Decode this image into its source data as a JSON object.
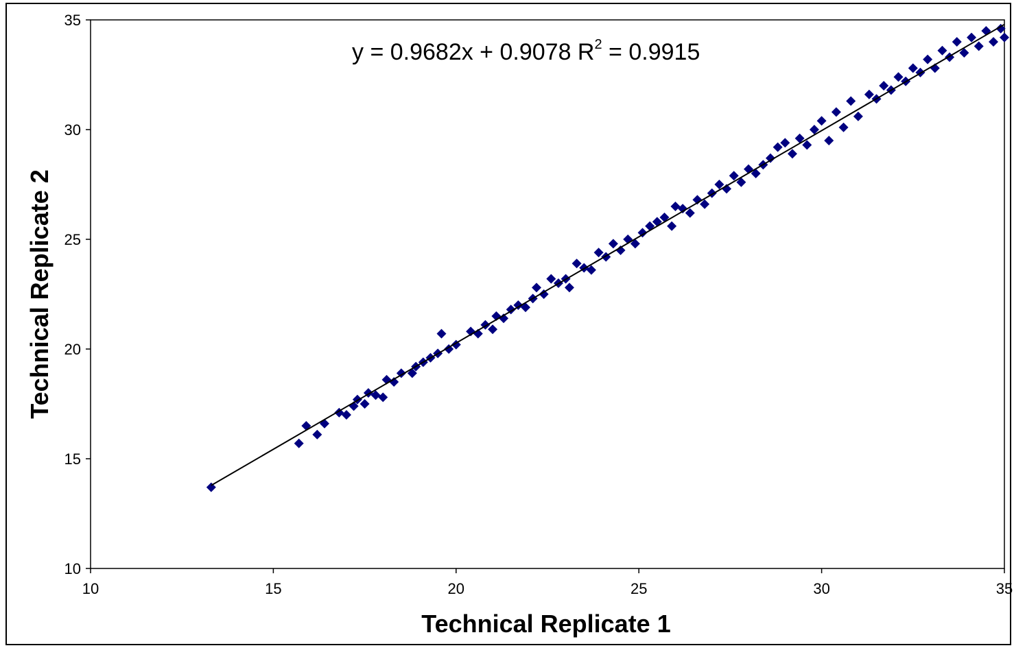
{
  "chart_data": {
    "type": "scatter",
    "xlabel": "Technical Replicate 1",
    "ylabel": "Technical Replicate 2",
    "xlim": [
      10,
      35
    ],
    "ylim": [
      10,
      35
    ],
    "x_ticks": [
      "10",
      "15",
      "20",
      "25",
      "30",
      "35"
    ],
    "y_ticks": [
      "10",
      "15",
      "20",
      "25",
      "30",
      "35"
    ],
    "trendline": {
      "type": "linear",
      "slope": 0.9682,
      "intercept": 0.9078,
      "r_squared": 0.9915,
      "equation_prefix": "y = 0.9682x + 0.9078 R",
      "equation_sup": "2",
      "equation_suffix": " = 0.9915",
      "color": "#000000"
    },
    "marker": {
      "shape": "diamond",
      "color": "#000080"
    },
    "grid": false,
    "legend": "none",
    "points": [
      [
        13.3,
        13.7
      ],
      [
        15.7,
        15.7
      ],
      [
        15.9,
        16.5
      ],
      [
        16.2,
        16.1
      ],
      [
        16.4,
        16.6
      ],
      [
        16.8,
        17.1
      ],
      [
        17.0,
        17.0
      ],
      [
        17.2,
        17.4
      ],
      [
        17.3,
        17.7
      ],
      [
        17.5,
        17.5
      ],
      [
        17.6,
        18.0
      ],
      [
        17.8,
        17.9
      ],
      [
        18.0,
        17.8
      ],
      [
        18.1,
        18.6
      ],
      [
        18.3,
        18.5
      ],
      [
        18.5,
        18.9
      ],
      [
        18.8,
        18.9
      ],
      [
        18.9,
        19.2
      ],
      [
        19.1,
        19.4
      ],
      [
        19.3,
        19.6
      ],
      [
        19.5,
        19.8
      ],
      [
        19.6,
        20.7
      ],
      [
        19.8,
        20.0
      ],
      [
        20.0,
        20.2
      ],
      [
        20.4,
        20.8
      ],
      [
        20.6,
        20.7
      ],
      [
        20.8,
        21.1
      ],
      [
        21.0,
        20.9
      ],
      [
        21.1,
        21.5
      ],
      [
        21.3,
        21.4
      ],
      [
        21.5,
        21.8
      ],
      [
        21.7,
        22.0
      ],
      [
        21.9,
        21.9
      ],
      [
        22.1,
        22.3
      ],
      [
        22.2,
        22.8
      ],
      [
        22.4,
        22.5
      ],
      [
        22.6,
        23.2
      ],
      [
        22.8,
        23.0
      ],
      [
        23.0,
        23.2
      ],
      [
        23.1,
        22.8
      ],
      [
        23.3,
        23.9
      ],
      [
        23.5,
        23.7
      ],
      [
        23.7,
        23.6
      ],
      [
        23.9,
        24.4
      ],
      [
        24.1,
        24.2
      ],
      [
        24.3,
        24.8
      ],
      [
        24.5,
        24.5
      ],
      [
        24.7,
        25.0
      ],
      [
        24.9,
        24.8
      ],
      [
        25.1,
        25.3
      ],
      [
        25.3,
        25.6
      ],
      [
        25.5,
        25.8
      ],
      [
        25.7,
        26.0
      ],
      [
        25.9,
        25.6
      ],
      [
        26.0,
        26.5
      ],
      [
        26.2,
        26.4
      ],
      [
        26.4,
        26.2
      ],
      [
        26.6,
        26.8
      ],
      [
        26.8,
        26.6
      ],
      [
        27.0,
        27.1
      ],
      [
        27.2,
        27.5
      ],
      [
        27.4,
        27.3
      ],
      [
        27.6,
        27.9
      ],
      [
        27.8,
        27.6
      ],
      [
        28.0,
        28.2
      ],
      [
        28.2,
        28.0
      ],
      [
        28.4,
        28.4
      ],
      [
        28.6,
        28.7
      ],
      [
        28.8,
        29.2
      ],
      [
        29.0,
        29.4
      ],
      [
        29.2,
        28.9
      ],
      [
        29.4,
        29.6
      ],
      [
        29.6,
        29.3
      ],
      [
        29.8,
        30.0
      ],
      [
        30.0,
        30.4
      ],
      [
        30.2,
        29.5
      ],
      [
        30.4,
        30.8
      ],
      [
        30.6,
        30.1
      ],
      [
        30.8,
        31.3
      ],
      [
        31.0,
        30.6
      ],
      [
        31.3,
        31.6
      ],
      [
        31.5,
        31.4
      ],
      [
        31.7,
        32.0
      ],
      [
        31.9,
        31.8
      ],
      [
        32.1,
        32.4
      ],
      [
        32.3,
        32.2
      ],
      [
        32.5,
        32.8
      ],
      [
        32.7,
        32.6
      ],
      [
        32.9,
        33.2
      ],
      [
        33.1,
        32.8
      ],
      [
        33.3,
        33.6
      ],
      [
        33.5,
        33.3
      ],
      [
        33.7,
        34.0
      ],
      [
        33.9,
        33.5
      ],
      [
        34.1,
        34.2
      ],
      [
        34.3,
        33.8
      ],
      [
        34.5,
        34.5
      ],
      [
        34.7,
        34.0
      ],
      [
        34.9,
        34.6
      ],
      [
        35.0,
        34.2
      ]
    ]
  }
}
